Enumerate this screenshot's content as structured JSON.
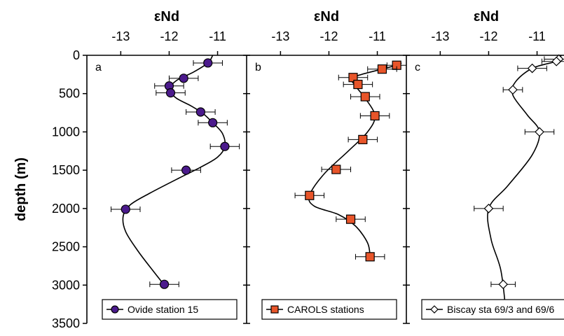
{
  "chart_data": [
    {
      "type": "scatter",
      "panel_label": "a",
      "x_axis_label": "εNd",
      "x_axis_position": "top",
      "x_ticks": [
        -13,
        -12,
        -11
      ],
      "xlim": [
        -13.7,
        -10.4
      ],
      "y_axis_label": "depth (m)",
      "y_ticks": [
        0,
        500,
        1000,
        1500,
        2000,
        2500,
        3000,
        3500
      ],
      "ylim": [
        0,
        3500
      ],
      "y_inverted": true,
      "legend_placement": "bottom",
      "marker_color": "#4B1A8C",
      "series": [
        {
          "name": "Ovide station 15",
          "marker": "circle",
          "x": [
            -11.2,
            -11.7,
            -12.0,
            -11.97,
            -11.35,
            -11.1,
            -10.85,
            -11.65,
            -12.9,
            -12.1
          ],
          "y": [
            100,
            300,
            400,
            490,
            740,
            880,
            1190,
            1500,
            2010,
            2990
          ],
          "x_error": [
            0.3,
            0.3,
            0.3,
            0.3,
            0.3,
            0.3,
            0.3,
            0.3,
            0.3,
            0.3
          ],
          "curve_x": [
            -11.1,
            -11.2,
            -11.5,
            -11.85,
            -12.0,
            -11.85,
            -11.55,
            -11.3,
            -11.1,
            -10.9,
            -10.85,
            -11.0,
            -11.35,
            -11.85,
            -12.4,
            -12.8,
            -12.95,
            -12.9,
            -12.65,
            -12.35,
            -12.1
          ],
          "curve_y": [
            0,
            100,
            220,
            330,
            450,
            560,
            660,
            760,
            880,
            1020,
            1190,
            1330,
            1460,
            1620,
            1800,
            1950,
            2100,
            2300,
            2550,
            2800,
            3000
          ]
        }
      ]
    },
    {
      "type": "scatter",
      "panel_label": "b",
      "x_axis_label": "εNd",
      "x_axis_position": "top",
      "x_ticks": [
        -13,
        -12,
        -11
      ],
      "xlim": [
        -13.7,
        -10.4
      ],
      "y_inverted": true,
      "ylim": [
        0,
        3500
      ],
      "legend_placement": "bottom",
      "marker_color": "#E8552A",
      "series": [
        {
          "name": "CAROLS stations",
          "marker": "square",
          "x": [
            -10.6,
            -10.9,
            -11.5,
            -11.4,
            -11.25,
            -11.05,
            -11.3,
            -11.85,
            -12.4,
            -11.55,
            -11.15
          ],
          "y": [
            130,
            180,
            290,
            380,
            540,
            790,
            1100,
            1490,
            1830,
            2140,
            2630
          ],
          "x_error": [
            0.2,
            0.3,
            0.3,
            0.3,
            0.3,
            0.3,
            0.3,
            0.3,
            0.3,
            0.3,
            0.3
          ],
          "curve_x": [
            -10.5,
            -10.6,
            -10.9,
            -11.5,
            -11.45,
            -11.25,
            -11.05,
            -11.2,
            -11.6,
            -12.1,
            -12.4,
            -12.3,
            -11.8,
            -11.45,
            -11.2,
            -11.15
          ],
          "curve_y": [
            100,
            130,
            180,
            290,
            400,
            560,
            790,
            1000,
            1250,
            1550,
            1830,
            1970,
            2080,
            2230,
            2450,
            2630
          ]
        }
      ]
    },
    {
      "type": "scatter",
      "panel_label": "c",
      "x_axis_label": "εNd",
      "x_axis_position": "top",
      "x_ticks": [
        -13,
        -12,
        -11
      ],
      "xlim": [
        -13.7,
        -10.4
      ],
      "y_inverted": true,
      "ylim": [
        0,
        3500
      ],
      "legend_placement": "bottom",
      "marker_color": "#ffffff",
      "series": [
        {
          "name": "Biscay sta 69/3 and 69/6",
          "marker": "diamond",
          "x": [
            -10.55,
            -10.6,
            -11.1,
            -11.5,
            -10.95,
            -12.0,
            -11.7
          ],
          "y": [
            50,
            80,
            170,
            450,
            1000,
            2000,
            2990
          ],
          "x_error": [
            0.3,
            0.3,
            0.3,
            0.2,
            0.3,
            0.3,
            0.25
          ],
          "curve_x": [
            -10.5,
            -10.55,
            -10.6,
            -11.1,
            -11.45,
            -11.5,
            -11.2,
            -10.95,
            -11.1,
            -11.6,
            -12.0,
            -11.95,
            -11.75,
            -11.65
          ],
          "curve_y": [
            0,
            50,
            80,
            170,
            350,
            520,
            780,
            1000,
            1300,
            1700,
            2000,
            2400,
            2800,
            3300
          ]
        }
      ]
    }
  ]
}
